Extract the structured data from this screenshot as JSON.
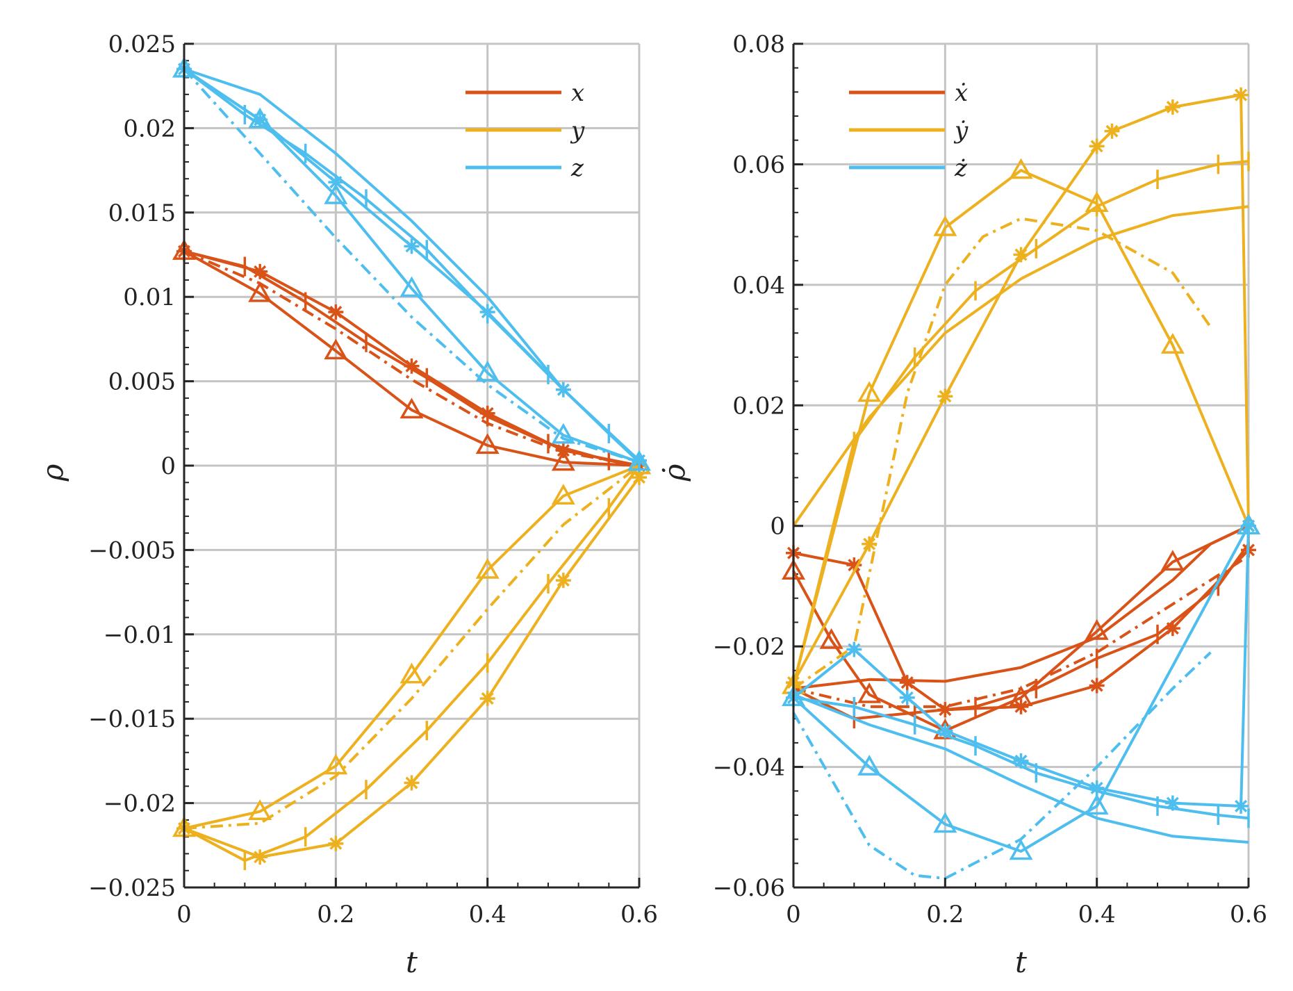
{
  "chart_data": [
    {
      "type": "line",
      "id": "left",
      "xlabel": "t",
      "ylabel": "ρ",
      "xlim": [
        0,
        0.6
      ],
      "ylim": [
        -0.025,
        0.025
      ],
      "x_ticks": [
        0,
        0.2,
        0.4,
        0.6
      ],
      "x_tick_labels": [
        "0",
        "0.2",
        "0.4",
        "0.6"
      ],
      "y_ticks": [
        0.025,
        0.02,
        0.015,
        0.01,
        0.005,
        0,
        -0.005,
        -0.01,
        -0.015,
        -0.02,
        -0.025
      ],
      "y_tick_labels": [
        "0.025",
        "0.02",
        "0.015",
        "0.01",
        "0.005",
        "0",
        "−0.005",
        "−0.01",
        "−0.015",
        "−0.02",
        "−0.025"
      ],
      "grid": true,
      "legend": [
        "x",
        "y",
        "z"
      ],
      "legend_position": "top-right",
      "series": [
        {
          "name": "x",
          "color": "#d95319",
          "dash": "solid",
          "marker": "triangle",
          "x": [
            0,
            0.1,
            0.2,
            0.3,
            0.4,
            0.5,
            0.6
          ],
          "y": [
            0.0127,
            0.0102,
            0.0068,
            0.0033,
            0.0012,
            0.0002,
            0
          ]
        },
        {
          "name": "x",
          "color": "#d95319",
          "dash": "solid",
          "marker": "star",
          "x": [
            0,
            0.1,
            0.2,
            0.3,
            0.4,
            0.5,
            0.6
          ],
          "y": [
            0.0127,
            0.0115,
            0.0091,
            0.0059,
            0.0031,
            0.0009,
            0
          ]
        },
        {
          "name": "x",
          "color": "#d95319",
          "dash": "solid",
          "marker": "plus",
          "x": [
            0,
            0.08,
            0.16,
            0.24,
            0.32,
            0.4,
            0.48,
            0.56,
            0.6
          ],
          "y": [
            0.0127,
            0.0118,
            0.0097,
            0.0073,
            0.0052,
            0.0029,
            0.0013,
            0.0003,
            0
          ]
        },
        {
          "name": "x",
          "color": "#d95319",
          "dash": "dashdot",
          "marker": "none",
          "x": [
            0,
            0.1,
            0.2,
            0.3,
            0.4,
            0.5,
            0.6
          ],
          "y": [
            0.0127,
            0.0108,
            0.0081,
            0.0051,
            0.0025,
            0.0008,
            0
          ]
        },
        {
          "name": "y",
          "color": "#edb120",
          "dash": "solid",
          "marker": "triangle",
          "x": [
            0,
            0.1,
            0.2,
            0.3,
            0.4,
            0.5,
            0.6
          ],
          "y": [
            -0.0215,
            -0.0205,
            -0.0178,
            -0.0124,
            -0.0062,
            -0.0018,
            0
          ]
        },
        {
          "name": "y",
          "color": "#edb120",
          "dash": "solid",
          "marker": "star",
          "x": [
            0,
            0.1,
            0.2,
            0.3,
            0.4,
            0.5,
            0.6
          ],
          "y": [
            -0.0215,
            -0.0232,
            -0.0224,
            -0.0188,
            -0.0138,
            -0.0068,
            -0.0007
          ]
        },
        {
          "name": "y",
          "color": "#edb120",
          "dash": "solid",
          "marker": "plus",
          "x": [
            0,
            0.08,
            0.16,
            0.24,
            0.32,
            0.4,
            0.48,
            0.56,
            0.6
          ],
          "y": [
            -0.0215,
            -0.0234,
            -0.022,
            -0.0192,
            -0.0157,
            -0.0117,
            -0.007,
            -0.0025,
            0
          ]
        },
        {
          "name": "y",
          "color": "#edb120",
          "dash": "dashdot",
          "marker": "none",
          "x": [
            0,
            0.1,
            0.2,
            0.3,
            0.4,
            0.5,
            0.6
          ],
          "y": [
            -0.0215,
            -0.0212,
            -0.0184,
            -0.0138,
            -0.0085,
            -0.0035,
            0
          ]
        },
        {
          "name": "z",
          "color": "#4dbeee",
          "dash": "solid",
          "marker": "triangle",
          "x": [
            0,
            0.1,
            0.2,
            0.3,
            0.4,
            0.5,
            0.6
          ],
          "y": [
            0.0235,
            0.0205,
            0.016,
            0.0105,
            0.0055,
            0.0018,
            0.0002
          ]
        },
        {
          "name": "z",
          "color": "#4dbeee",
          "dash": "solid",
          "marker": "star",
          "x": [
            0,
            0.1,
            0.2,
            0.3,
            0.4,
            0.5,
            0.6
          ],
          "y": [
            0.0235,
            0.0205,
            0.0168,
            0.013,
            0.0091,
            0.0045,
            0.0003
          ]
        },
        {
          "name": "z",
          "color": "#4dbeee",
          "dash": "solid",
          "marker": "plus",
          "x": [
            0,
            0.08,
            0.16,
            0.24,
            0.32,
            0.4,
            0.48,
            0.56,
            0.6
          ],
          "y": [
            0.0235,
            0.0208,
            0.0185,
            0.0158,
            0.0128,
            0.009,
            0.0054,
            0.0019,
            0.0002
          ]
        },
        {
          "name": "z",
          "color": "#4dbeee",
          "dash": "solid",
          "marker": "none",
          "x": [
            0,
            0.1,
            0.2,
            0.3,
            0.4,
            0.5,
            0.6
          ],
          "y": [
            0.0235,
            0.022,
            0.0185,
            0.0145,
            0.01,
            0.0045,
            0.0002
          ]
        },
        {
          "name": "z",
          "color": "#4dbeee",
          "dash": "dashdot",
          "marker": "none",
          "x": [
            0,
            0.1,
            0.2,
            0.3,
            0.4,
            0.5,
            0.6
          ],
          "y": [
            0.0235,
            0.0185,
            0.0135,
            0.0088,
            0.0048,
            0.0016,
            0.0002
          ]
        }
      ]
    },
    {
      "type": "line",
      "id": "right",
      "xlabel": "t",
      "ylabel": "ρ̇",
      "xlim": [
        0,
        0.6
      ],
      "ylim": [
        -0.06,
        0.08
      ],
      "x_ticks": [
        0,
        0.2,
        0.4,
        0.6
      ],
      "x_tick_labels": [
        "0",
        "0.2",
        "0.4",
        "0.6"
      ],
      "y_ticks": [
        0.08,
        0.06,
        0.04,
        0.02,
        0,
        -0.02,
        -0.04,
        -0.06
      ],
      "y_tick_labels": [
        "0.08",
        "0.06",
        "0.04",
        "0.02",
        "0",
        "−0.02",
        "−0.04",
        "−0.06"
      ],
      "grid": true,
      "legend": [
        "ẋ",
        "ẏ",
        "ż"
      ],
      "legend_position": "top-left",
      "series": [
        {
          "name": "ẋ",
          "color": "#d95319",
          "dash": "solid",
          "marker": "triangle",
          "x": [
            0,
            0.05,
            0.1,
            0.2,
            0.3,
            0.4,
            0.5,
            0.6
          ],
          "y": [
            -0.0075,
            -0.019,
            -0.028,
            -0.034,
            -0.0285,
            -0.0175,
            -0.006,
            0
          ]
        },
        {
          "name": "ẋ",
          "color": "#d95319",
          "dash": "solid",
          "marker": "star",
          "x": [
            0,
            0.08,
            0.15,
            0.2,
            0.3,
            0.4,
            0.5,
            0.6
          ],
          "y": [
            -0.0045,
            -0.0065,
            -0.026,
            -0.0305,
            -0.03,
            -0.0265,
            -0.017,
            -0.004
          ]
        },
        {
          "name": "ẋ",
          "color": "#d95319",
          "dash": "solid",
          "marker": "plus",
          "x": [
            0,
            0.08,
            0.16,
            0.24,
            0.32,
            0.4,
            0.48,
            0.56,
            0.6
          ],
          "y": [
            -0.027,
            -0.032,
            -0.031,
            -0.03,
            -0.027,
            -0.022,
            -0.018,
            -0.01,
            -0.003
          ]
        },
        {
          "name": "ẋ",
          "color": "#d95319",
          "dash": "solid",
          "marker": "none",
          "x": [
            0,
            0.1,
            0.2,
            0.3,
            0.4,
            0.5,
            0.55,
            0.6
          ],
          "y": [
            -0.027,
            -0.0255,
            -0.0258,
            -0.0235,
            -0.0185,
            -0.009,
            -0.003,
            0
          ]
        },
        {
          "name": "ẋ",
          "color": "#d95319",
          "dash": "dashdot",
          "marker": "none",
          "x": [
            0,
            0.1,
            0.2,
            0.3,
            0.4,
            0.5,
            0.6
          ],
          "y": [
            -0.027,
            -0.03,
            -0.03,
            -0.027,
            -0.021,
            -0.013,
            -0.005
          ]
        },
        {
          "name": "ẏ",
          "color": "#edb120",
          "dash": "solid",
          "marker": "triangle",
          "x": [
            0,
            0.1,
            0.2,
            0.3,
            0.4,
            0.5,
            0.6
          ],
          "y": [
            -0.0265,
            0.022,
            0.0495,
            0.059,
            0.0535,
            0.03,
            0
          ]
        },
        {
          "name": "ẏ",
          "color": "#edb120",
          "dash": "solid",
          "marker": "star",
          "x": [
            0,
            0.1,
            0.2,
            0.3,
            0.4,
            0.42,
            0.5,
            0.59,
            0.6
          ],
          "y": [
            -0.026,
            -0.003,
            0.0215,
            0.045,
            0.063,
            0.0655,
            0.0695,
            0.0715,
            0
          ]
        },
        {
          "name": "ẏ",
          "color": "#edb120",
          "dash": "solid",
          "marker": "plus",
          "x": [
            0,
            0.08,
            0.16,
            0.24,
            0.32,
            0.4,
            0.48,
            0.56,
            0.6
          ],
          "y": [
            -0.0265,
            0.014,
            0.028,
            0.039,
            0.046,
            0.053,
            0.0575,
            0.06,
            0.0605
          ]
        },
        {
          "name": "ẏ",
          "color": "#edb120",
          "dash": "solid",
          "marker": "none",
          "x": [
            0,
            0.1,
            0.2,
            0.3,
            0.4,
            0.5,
            0.6
          ],
          "y": [
            0,
            0.018,
            0.032,
            0.041,
            0.0475,
            0.0515,
            0.053
          ]
        },
        {
          "name": "ẏ",
          "color": "#edb120",
          "dash": "dashdot",
          "marker": "none",
          "x": [
            0,
            0.08,
            0.15,
            0.2,
            0.25,
            0.3,
            0.4,
            0.5,
            0.55
          ],
          "y": [
            -0.027,
            -0.02,
            0.022,
            0.04,
            0.048,
            0.051,
            0.049,
            0.042,
            0.033
          ]
        },
        {
          "name": "ż",
          "color": "#4dbeee",
          "dash": "solid",
          "marker": "triangle",
          "x": [
            0,
            0.1,
            0.2,
            0.3,
            0.4,
            0.6
          ],
          "y": [
            -0.0285,
            -0.04,
            -0.0495,
            -0.054,
            -0.0465,
            0
          ]
        },
        {
          "name": "ż",
          "color": "#4dbeee",
          "dash": "solid",
          "marker": "star",
          "x": [
            0,
            0.08,
            0.15,
            0.2,
            0.3,
            0.4,
            0.5,
            0.59,
            0.6
          ],
          "y": [
            -0.0285,
            -0.0205,
            -0.0285,
            -0.034,
            -0.039,
            -0.0435,
            -0.046,
            -0.0465,
            0
          ]
        },
        {
          "name": "ż",
          "color": "#4dbeee",
          "dash": "solid",
          "marker": "plus",
          "x": [
            0,
            0.08,
            0.16,
            0.24,
            0.32,
            0.4,
            0.48,
            0.56,
            0.6
          ],
          "y": [
            -0.0285,
            -0.03,
            -0.033,
            -0.0365,
            -0.041,
            -0.044,
            -0.0465,
            -0.048,
            -0.0485
          ]
        },
        {
          "name": "ż",
          "color": "#4dbeee",
          "dash": "solid",
          "marker": "none",
          "x": [
            0,
            0.1,
            0.2,
            0.3,
            0.4,
            0.5,
            0.6
          ],
          "y": [
            -0.028,
            -0.033,
            -0.037,
            -0.043,
            -0.0485,
            -0.0515,
            -0.0525
          ]
        },
        {
          "name": "ż",
          "color": "#4dbeee",
          "dash": "dashdot",
          "marker": "none",
          "x": [
            0,
            0.05,
            0.1,
            0.16,
            0.2,
            0.3,
            0.4,
            0.5,
            0.55
          ],
          "y": [
            -0.031,
            -0.042,
            -0.053,
            -0.058,
            -0.0585,
            -0.052,
            -0.04,
            -0.027,
            -0.021
          ]
        }
      ]
    }
  ]
}
